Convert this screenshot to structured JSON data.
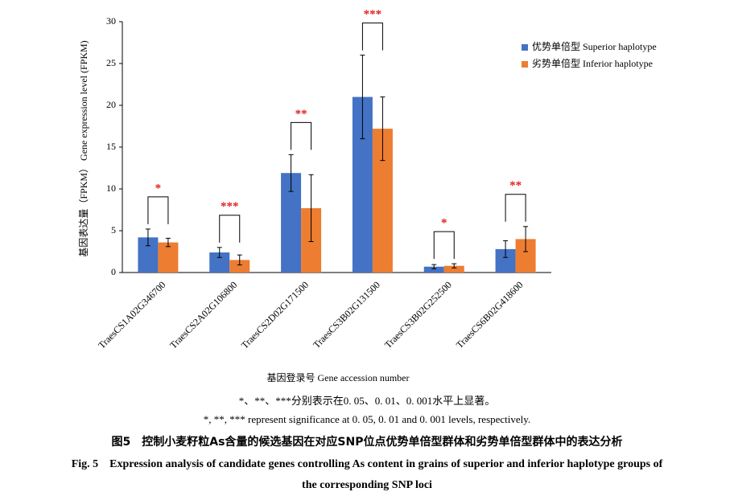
{
  "chart_data": {
    "type": "bar",
    "y_label": "基因表达量（FPKM） Gene expression level (FPKM)",
    "x_label": "基因登录号 Gene accession number",
    "categories": [
      "TraesCS1A02G346700",
      "TraesCS2A02G106800",
      "TraesCS2D02G171500",
      "TraesCS3B02G131500",
      "TraesCS3B02G252500",
      "TraesCS6B02G418600"
    ],
    "series": [
      {
        "name": "优势单倍型 Superior haplotype",
        "color": "#4472c4",
        "values": [
          4.2,
          2.4,
          11.9,
          21.0,
          0.7,
          2.8
        ],
        "errors": [
          1.0,
          0.6,
          2.2,
          5.0,
          0.25,
          1.0
        ]
      },
      {
        "name": "劣势单倍型 Inferior haplotype",
        "color": "#ed7d31",
        "values": [
          3.6,
          1.5,
          7.7,
          17.2,
          0.8,
          4.0
        ],
        "errors": [
          0.5,
          0.6,
          4.0,
          3.8,
          0.25,
          1.5
        ]
      }
    ],
    "significance": [
      "*",
      "***",
      "**",
      "***",
      "*",
      "**"
    ],
    "ylim": [
      0,
      30
    ],
    "yticks": [
      0,
      5,
      10,
      15,
      20,
      25,
      30
    ],
    "note_cn": "*、**、***分别表示在0. 05、0. 01、0. 001水平上显著。",
    "note_en": "*, **, *** represent significance at 0. 05, 0. 01 and 0. 001 levels, respectively.",
    "caption_cn": "图5　控制小麦籽粒As含量的候选基因在对应SNP位点优势单倍型群体和劣势单倍型群体中的表达分析",
    "caption_en_1": "Fig. 5　Expression analysis of candidate genes controlling As content in grains of superior and inferior haplotype groups of",
    "caption_en_2": "the corresponding SNP loci"
  }
}
